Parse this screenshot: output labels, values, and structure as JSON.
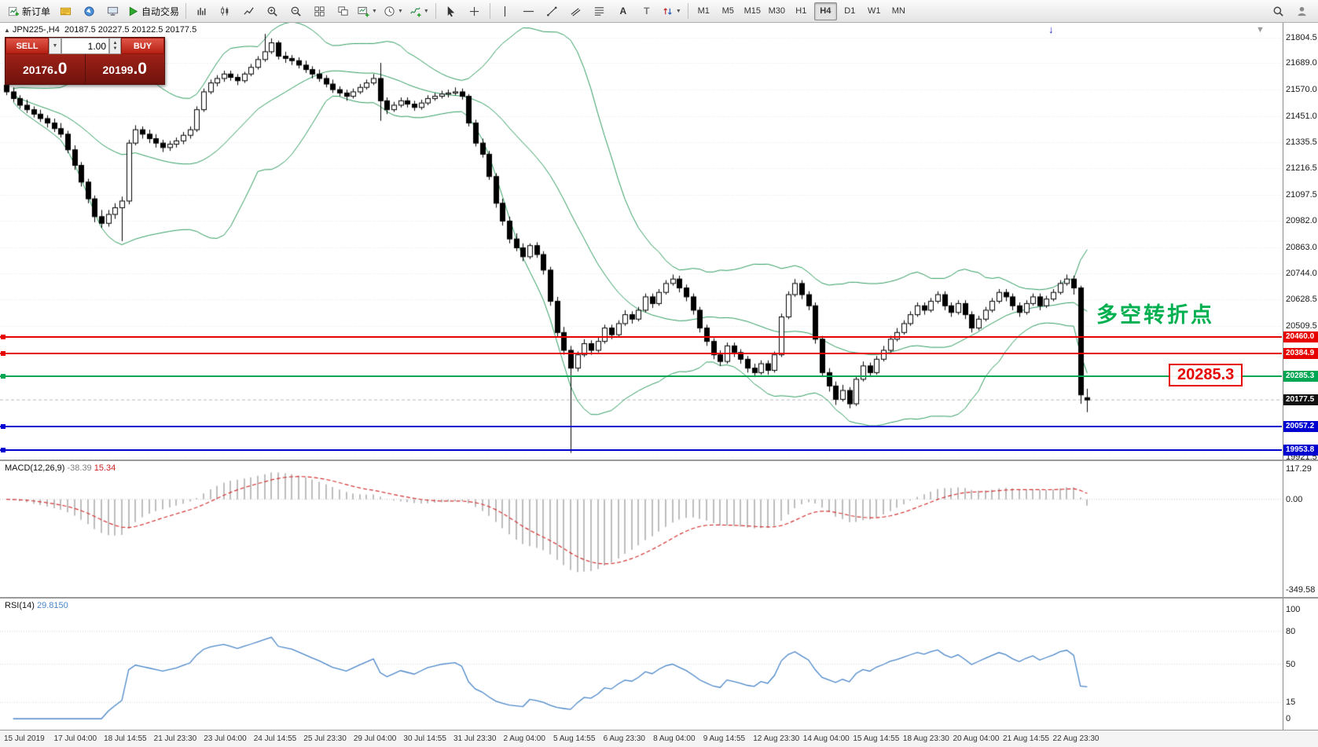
{
  "toolbar": {
    "new_order_label": "新订单",
    "autotrading_label": "自动交易",
    "timeframes": [
      "M1",
      "M5",
      "M15",
      "M30",
      "H1",
      "H4",
      "D1",
      "W1",
      "MN"
    ],
    "active_timeframe": "H4",
    "text_tool_label": "A",
    "label_tool_label": "T"
  },
  "one_click": {
    "sell_label": "SELL",
    "buy_label": "BUY",
    "lot": "1.00",
    "sell_price_main": "20176",
    "sell_price_frac": ".0",
    "buy_price_main": "20199",
    "buy_price_frac": ".0"
  },
  "chart": {
    "symbol": "JPN225-,H4",
    "ohlc": "20187.5 20227.5 20122.5 20177.5",
    "annotation": "多空转折点",
    "callout": "20285.3",
    "price_max": 21870,
    "price_min": 19910,
    "price_scale": [
      21804.5,
      21689.0,
      21570.0,
      21451.0,
      21335.5,
      21216.5,
      21097.5,
      20982.0,
      20863.0,
      20744.0,
      20628.5,
      20509.5,
      19921.5
    ],
    "levels": [
      {
        "price": 20460.0,
        "label": "20460.0",
        "color": "#e60000"
      },
      {
        "price": 20384.9,
        "label": "20384.9",
        "color": "#e60000"
      },
      {
        "price": 20285.3,
        "label": "20285.3",
        "color": "#00a651"
      },
      {
        "price": 20057.2,
        "label": "20057.2",
        "color": "#0000d0"
      },
      {
        "price": 19953.8,
        "label": "19953.8",
        "color": "#0000d0"
      }
    ],
    "current_price": {
      "value": 20177.5,
      "label": "20177.5",
      "color": "#111111"
    },
    "band_color": "#2e9b5f",
    "bb_period": 20,
    "bb_deviation": 2,
    "candles": [
      [
        21590,
        21605,
        21545,
        21560
      ],
      [
        21560,
        21580,
        21515,
        21530
      ],
      [
        21530,
        21545,
        21485,
        21500
      ],
      [
        21500,
        21525,
        21465,
        21480
      ],
      [
        21480,
        21495,
        21445,
        21460
      ],
      [
        21460,
        21480,
        21425,
        21440
      ],
      [
        21440,
        21455,
        21400,
        21420
      ],
      [
        21420,
        21440,
        21380,
        21395
      ],
      [
        21395,
        21420,
        21355,
        21370
      ],
      [
        21370,
        21385,
        21285,
        21300
      ],
      [
        21300,
        21320,
        21210,
        21230
      ],
      [
        21230,
        21245,
        21135,
        21155
      ],
      [
        21155,
        21170,
        21060,
        21080
      ],
      [
        21080,
        21095,
        20975,
        21000
      ],
      [
        21000,
        21030,
        20950,
        20970
      ],
      [
        20970,
        21030,
        20955,
        21010
      ],
      [
        21010,
        21060,
        20990,
        21040
      ],
      [
        21040,
        21090,
        20890,
        21070
      ],
      [
        21070,
        21345,
        21055,
        21330
      ],
      [
        21330,
        21410,
        21320,
        21390
      ],
      [
        21390,
        21405,
        21350,
        21370
      ],
      [
        21370,
        21390,
        21330,
        21350
      ],
      [
        21350,
        21370,
        21310,
        21330
      ],
      [
        21330,
        21345,
        21290,
        21310
      ],
      [
        21310,
        21340,
        21295,
        21325
      ],
      [
        21325,
        21355,
        21310,
        21340
      ],
      [
        21340,
        21380,
        21325,
        21365
      ],
      [
        21365,
        21405,
        21350,
        21390
      ],
      [
        21390,
        21495,
        21380,
        21480
      ],
      [
        21480,
        21575,
        21470,
        21560
      ],
      [
        21560,
        21615,
        21550,
        21600
      ],
      [
        21600,
        21635,
        21585,
        21620
      ],
      [
        21620,
        21655,
        21605,
        21640
      ],
      [
        21640,
        21655,
        21610,
        21625
      ],
      [
        21625,
        21640,
        21590,
        21610
      ],
      [
        21610,
        21650,
        21600,
        21640
      ],
      [
        21640,
        21685,
        21630,
        21670
      ],
      [
        21670,
        21720,
        21660,
        21705
      ],
      [
        21705,
        21820,
        21695,
        21740
      ],
      [
        21740,
        21800,
        21730,
        21780
      ],
      [
        21780,
        21790,
        21705,
        21720
      ],
      [
        21720,
        21740,
        21690,
        21710
      ],
      [
        21710,
        21725,
        21680,
        21700
      ],
      [
        21700,
        21715,
        21665,
        21680
      ],
      [
        21680,
        21700,
        21645,
        21660
      ],
      [
        21660,
        21675,
        21620,
        21640
      ],
      [
        21640,
        21660,
        21605,
        21620
      ],
      [
        21620,
        21635,
        21580,
        21595
      ],
      [
        21595,
        21615,
        21555,
        21570
      ],
      [
        21570,
        21585,
        21540,
        21555
      ],
      [
        21555,
        21570,
        21520,
        21540
      ],
      [
        21540,
        21575,
        21530,
        21560
      ],
      [
        21560,
        21595,
        21550,
        21580
      ],
      [
        21580,
        21615,
        21570,
        21600
      ],
      [
        21600,
        21640,
        21590,
        21620
      ],
      [
        21620,
        21690,
        21430,
        21520
      ],
      [
        21520,
        21535,
        21460,
        21480
      ],
      [
        21480,
        21515,
        21470,
        21500
      ],
      [
        21500,
        21535,
        21490,
        21520
      ],
      [
        21520,
        21535,
        21490,
        21505
      ],
      [
        21505,
        21520,
        21475,
        21490
      ],
      [
        21490,
        21525,
        21480,
        21510
      ],
      [
        21510,
        21545,
        21500,
        21530
      ],
      [
        21530,
        21555,
        21520,
        21540
      ],
      [
        21540,
        21565,
        21530,
        21550
      ],
      [
        21550,
        21570,
        21535,
        21555
      ],
      [
        21555,
        21580,
        21545,
        21560
      ],
      [
        21560,
        21575,
        21525,
        21540
      ],
      [
        21540,
        21550,
        21405,
        21420
      ],
      [
        21420,
        21435,
        21315,
        21330
      ],
      [
        21330,
        21350,
        21265,
        21280
      ],
      [
        21280,
        21295,
        21165,
        21180
      ],
      [
        21180,
        21195,
        21040,
        21060
      ],
      [
        21060,
        21080,
        20960,
        20980
      ],
      [
        20980,
        21000,
        20880,
        20900
      ],
      [
        20900,
        20925,
        20845,
        20860
      ],
      [
        20860,
        20880,
        20800,
        20820
      ],
      [
        20820,
        20880,
        20810,
        20870
      ],
      [
        20870,
        20885,
        20815,
        20830
      ],
      [
        20830,
        20845,
        20740,
        20760
      ],
      [
        20760,
        20775,
        20600,
        20620
      ],
      [
        20620,
        20640,
        20460,
        20480
      ],
      [
        20480,
        20505,
        20380,
        20400
      ],
      [
        20400,
        20420,
        19940,
        20320
      ],
      [
        20320,
        20395,
        20305,
        20380
      ],
      [
        20380,
        20450,
        20370,
        20430
      ],
      [
        20430,
        20445,
        20380,
        20400
      ],
      [
        20400,
        20460,
        20390,
        20440
      ],
      [
        20440,
        20515,
        20430,
        20500
      ],
      [
        20500,
        20515,
        20450,
        20470
      ],
      [
        20470,
        20535,
        20460,
        20520
      ],
      [
        20520,
        20580,
        20510,
        20560
      ],
      [
        20560,
        20575,
        20520,
        20540
      ],
      [
        20540,
        20595,
        20530,
        20580
      ],
      [
        20580,
        20655,
        20570,
        20640
      ],
      [
        20640,
        20655,
        20590,
        20610
      ],
      [
        20610,
        20675,
        20600,
        20660
      ],
      [
        20660,
        20715,
        20650,
        20700
      ],
      [
        20700,
        20740,
        20690,
        20720
      ],
      [
        20720,
        20735,
        20660,
        20680
      ],
      [
        20680,
        20695,
        20620,
        20640
      ],
      [
        20640,
        20655,
        20560,
        20580
      ],
      [
        20580,
        20595,
        20480,
        20500
      ],
      [
        20500,
        20515,
        20420,
        20440
      ],
      [
        20440,
        20455,
        20360,
        20380
      ],
      [
        20380,
        20400,
        20330,
        20350
      ],
      [
        20350,
        20435,
        20340,
        20420
      ],
      [
        20420,
        20435,
        20370,
        20390
      ],
      [
        20390,
        20405,
        20340,
        20360
      ],
      [
        20360,
        20375,
        20300,
        20320
      ],
      [
        20320,
        20340,
        20280,
        20300
      ],
      [
        20300,
        20355,
        20290,
        20340
      ],
      [
        20340,
        20355,
        20290,
        20310
      ],
      [
        20310,
        20395,
        20300,
        20380
      ],
      [
        20380,
        20565,
        20370,
        20550
      ],
      [
        20550,
        20665,
        20540,
        20650
      ],
      [
        20650,
        20720,
        20640,
        20700
      ],
      [
        20700,
        20715,
        20630,
        20650
      ],
      [
        20650,
        20665,
        20580,
        20600
      ],
      [
        20600,
        20615,
        20430,
        20450
      ],
      [
        20450,
        20465,
        20280,
        20300
      ],
      [
        20300,
        20320,
        20215,
        20240
      ],
      [
        20240,
        20260,
        20155,
        20180
      ],
      [
        20180,
        20245,
        20170,
        20220
      ],
      [
        20220,
        20235,
        20140,
        20160
      ],
      [
        20160,
        20285,
        20150,
        20270
      ],
      [
        20270,
        20350,
        20260,
        20330
      ],
      [
        20330,
        20345,
        20280,
        20300
      ],
      [
        20300,
        20375,
        20290,
        20360
      ],
      [
        20360,
        20420,
        20350,
        20400
      ],
      [
        20400,
        20465,
        20390,
        20450
      ],
      [
        20450,
        20500,
        20440,
        20480
      ],
      [
        20480,
        20535,
        20470,
        20520
      ],
      [
        20520,
        20575,
        20510,
        20560
      ],
      [
        20560,
        20615,
        20550,
        20600
      ],
      [
        20600,
        20615,
        20560,
        20580
      ],
      [
        20580,
        20635,
        20570,
        20620
      ],
      [
        20620,
        20665,
        20610,
        20650
      ],
      [
        20650,
        20665,
        20580,
        20600
      ],
      [
        20600,
        20615,
        20550,
        20570
      ],
      [
        20570,
        20625,
        20560,
        20610
      ],
      [
        20610,
        20625,
        20540,
        20560
      ],
      [
        20560,
        20575,
        20480,
        20500
      ],
      [
        20500,
        20555,
        20490,
        20540
      ],
      [
        20540,
        20595,
        20530,
        20580
      ],
      [
        20580,
        20635,
        20570,
        20620
      ],
      [
        20620,
        20675,
        20610,
        20660
      ],
      [
        20660,
        20675,
        20620,
        20640
      ],
      [
        20640,
        20655,
        20580,
        20600
      ],
      [
        20600,
        20615,
        20550,
        20570
      ],
      [
        20570,
        20625,
        20560,
        20610
      ],
      [
        20610,
        20655,
        20600,
        20640
      ],
      [
        20640,
        20655,
        20580,
        20600
      ],
      [
        20600,
        20645,
        20590,
        20630
      ],
      [
        20630,
        20675,
        20620,
        20660
      ],
      [
        20660,
        20715,
        20650,
        20700
      ],
      [
        20700,
        20740,
        20690,
        20720
      ],
      [
        20720,
        20735,
        20650,
        20680
      ],
      [
        20680,
        20690,
        20160,
        20200
      ],
      [
        20187.5,
        20227.5,
        20122.5,
        20177.5
      ]
    ]
  },
  "macd": {
    "name": "MACD(12,26,9)",
    "value1": "-38.39",
    "value2": "15.34",
    "fast": 12,
    "slow": 26,
    "signal": 9,
    "histogram_color": "#bdbdbd",
    "signal_color": "#d43030",
    "scale_labels": [
      {
        "text": "117.29",
        "value": 117.29
      },
      {
        "text": "0.00",
        "value": 0
      },
      {
        "text": "-349.58",
        "value": -349.58
      }
    ]
  },
  "rsi": {
    "name": "RSI(14)",
    "value": "29.8150",
    "period": 14,
    "line_color": "#4a86c8",
    "levels": [
      80,
      50,
      15
    ],
    "scale_labels": [
      {
        "text": "100",
        "value": 100
      },
      {
        "text": "80",
        "value": 80
      },
      {
        "text": "50",
        "value": 50
      },
      {
        "text": "15",
        "value": 15
      },
      {
        "text": "0",
        "value": 0
      }
    ]
  },
  "time_axis": [
    "15 Jul 2019",
    "17 Jul 04:00",
    "18 Jul 14:55",
    "21 Jul 23:30",
    "23 Jul 04:00",
    "24 Jul 14:55",
    "25 Jul 23:30",
    "29 Jul 04:00",
    "30 Jul 14:55",
    "31 Jul 23:30",
    "2 Aug 04:00",
    "5 Aug 14:55",
    "6 Aug 23:30",
    "8 Aug 04:00",
    "9 Aug 14:55",
    "12 Aug 23:30",
    "14 Aug 04:00",
    "15 Aug 14:55",
    "18 Aug 23:30",
    "20 Aug 04:00",
    "21 Aug 14:55",
    "22 Aug 23:30"
  ]
}
